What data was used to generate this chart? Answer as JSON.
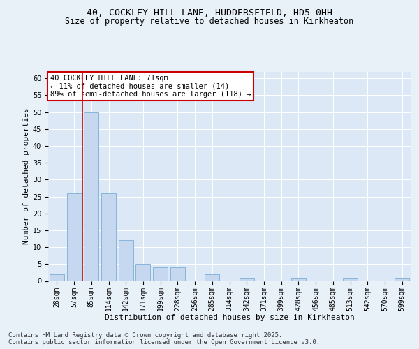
{
  "title_line1": "40, COCKLEY HILL LANE, HUDDERSFIELD, HD5 0HH",
  "title_line2": "Size of property relative to detached houses in Kirkheaton",
  "xlabel": "Distribution of detached houses by size in Kirkheaton",
  "ylabel": "Number of detached properties",
  "categories": [
    "28sqm",
    "57sqm",
    "85sqm",
    "114sqm",
    "142sqm",
    "171sqm",
    "199sqm",
    "228sqm",
    "256sqm",
    "285sqm",
    "314sqm",
    "342sqm",
    "371sqm",
    "399sqm",
    "428sqm",
    "456sqm",
    "485sqm",
    "513sqm",
    "542sqm",
    "570sqm",
    "599sqm"
  ],
  "values": [
    2,
    26,
    50,
    26,
    12,
    5,
    4,
    4,
    0,
    2,
    0,
    1,
    0,
    0,
    1,
    0,
    0,
    1,
    0,
    0,
    1
  ],
  "bar_color": "#c5d8f0",
  "bar_edge_color": "#7aaed4",
  "vline_x": 1.5,
  "vline_color": "#cc0000",
  "annotation_text": "40 COCKLEY HILL LANE: 71sqm\n← 11% of detached houses are smaller (14)\n89% of semi-detached houses are larger (118) →",
  "annotation_box_color": "#ffffff",
  "annotation_box_edge": "#cc0000",
  "ylim": [
    0,
    62
  ],
  "yticks": [
    0,
    5,
    10,
    15,
    20,
    25,
    30,
    35,
    40,
    45,
    50,
    55,
    60
  ],
  "background_color": "#e8f0f8",
  "plot_bg_color": "#dce8f5",
  "footer_text": "Contains HM Land Registry data © Crown copyright and database right 2025.\nContains public sector information licensed under the Open Government Licence v3.0.",
  "title_fontsize": 9.5,
  "subtitle_fontsize": 8.5,
  "axis_label_fontsize": 8,
  "tick_fontsize": 7,
  "annotation_fontsize": 7.5,
  "footer_fontsize": 6.5
}
